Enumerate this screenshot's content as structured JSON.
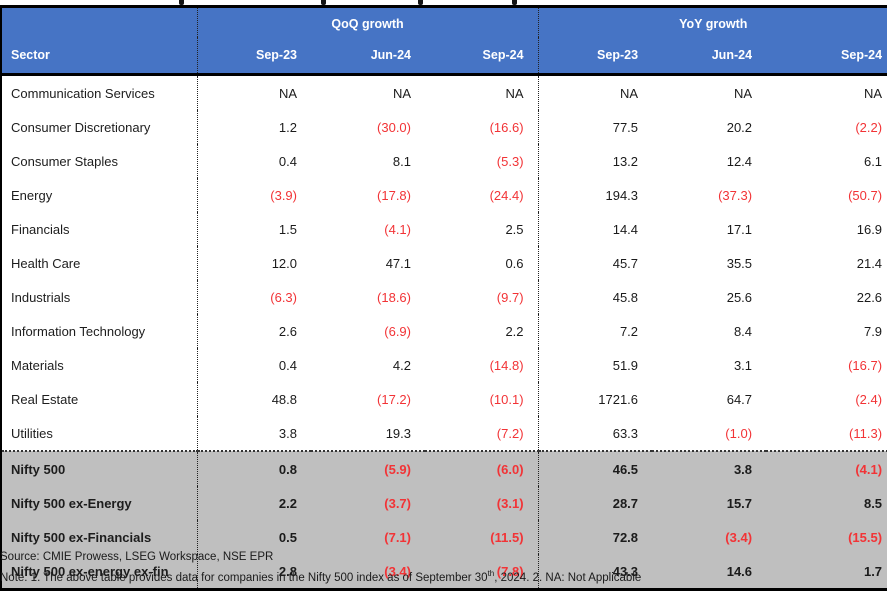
{
  "header": {
    "sector_label": "Sector",
    "groups": [
      {
        "label": "QoQ growth",
        "periods": [
          "Sep-23",
          "Jun-24",
          "Sep-24"
        ]
      },
      {
        "label": "YoY growth",
        "periods": [
          "Sep-23",
          "Jun-24",
          "Sep-24"
        ]
      }
    ]
  },
  "rows": [
    {
      "sector": "Communication Services",
      "values": [
        "NA",
        "NA",
        "NA",
        "NA",
        "NA",
        "NA"
      ]
    },
    {
      "sector": "Consumer Discretionary",
      "values": [
        "1.2",
        "(30.0)",
        "(16.6)",
        "77.5",
        "20.2",
        "(2.2)"
      ]
    },
    {
      "sector": "Consumer Staples",
      "values": [
        "0.4",
        "8.1",
        "(5.3)",
        "13.2",
        "12.4",
        "6.1"
      ]
    },
    {
      "sector": "Energy",
      "values": [
        "(3.9)",
        "(17.8)",
        "(24.4)",
        "194.3",
        "(37.3)",
        "(50.7)"
      ]
    },
    {
      "sector": "Financials",
      "values": [
        "1.5",
        "(4.1)",
        "2.5",
        "14.4",
        "17.1",
        "16.9"
      ]
    },
    {
      "sector": "Health Care",
      "values": [
        "12.0",
        "47.1",
        "0.6",
        "45.7",
        "35.5",
        "21.4"
      ]
    },
    {
      "sector": "Industrials",
      "values": [
        "(6.3)",
        "(18.6)",
        "(9.7)",
        "45.8",
        "25.6",
        "22.6"
      ]
    },
    {
      "sector": "Information Technology",
      "values": [
        "2.6",
        "(6.9)",
        "2.2",
        "7.2",
        "8.4",
        "7.9"
      ]
    },
    {
      "sector": "Materials",
      "values": [
        "0.4",
        "4.2",
        "(14.8)",
        "51.9",
        "3.1",
        "(16.7)"
      ]
    },
    {
      "sector": "Real Estate",
      "values": [
        "48.8",
        "(17.2)",
        "(10.1)",
        "1721.6",
        "64.7",
        "(2.4)"
      ]
    },
    {
      "sector": "Utilities",
      "values": [
        "3.8",
        "19.3",
        "(7.2)",
        "63.3",
        "(1.0)",
        "(11.3)"
      ]
    }
  ],
  "summary_rows": [
    {
      "sector": "Nifty 500",
      "values": [
        "0.8",
        "(5.9)",
        "(6.0)",
        "46.5",
        "3.8",
        "(4.1)"
      ]
    },
    {
      "sector": "Nifty 500 ex-Energy",
      "values": [
        "2.2",
        "(3.7)",
        "(3.1)",
        "28.7",
        "15.7",
        "8.5"
      ]
    },
    {
      "sector": "Nifty 500 ex-Financials",
      "values": [
        "0.5",
        "(7.1)",
        "(11.5)",
        "72.8",
        "(3.4)",
        "(15.5)"
      ]
    },
    {
      "sector": "Nifty 500 ex-energy ex-fin",
      "values": [
        "2.8",
        "(3.4)",
        "(7.8)",
        "43.3",
        "14.6",
        "1.7"
      ]
    }
  ],
  "footer": {
    "source": "Source: CMIE Prowess, LSEG Workspace, NSE EPR",
    "note_pre": "Note: 1. The above table provides data for companies in the Nifty 500 index as of September 30",
    "note_sup": "th",
    "note_post": ", 2024. 2. NA: Not Applicable"
  },
  "colors": {
    "header_bg": "#4674C5",
    "header_text": "#FFFFFF",
    "negative": "#F23336",
    "summary_bg": "#BFBFBF",
    "border": "#000000"
  }
}
